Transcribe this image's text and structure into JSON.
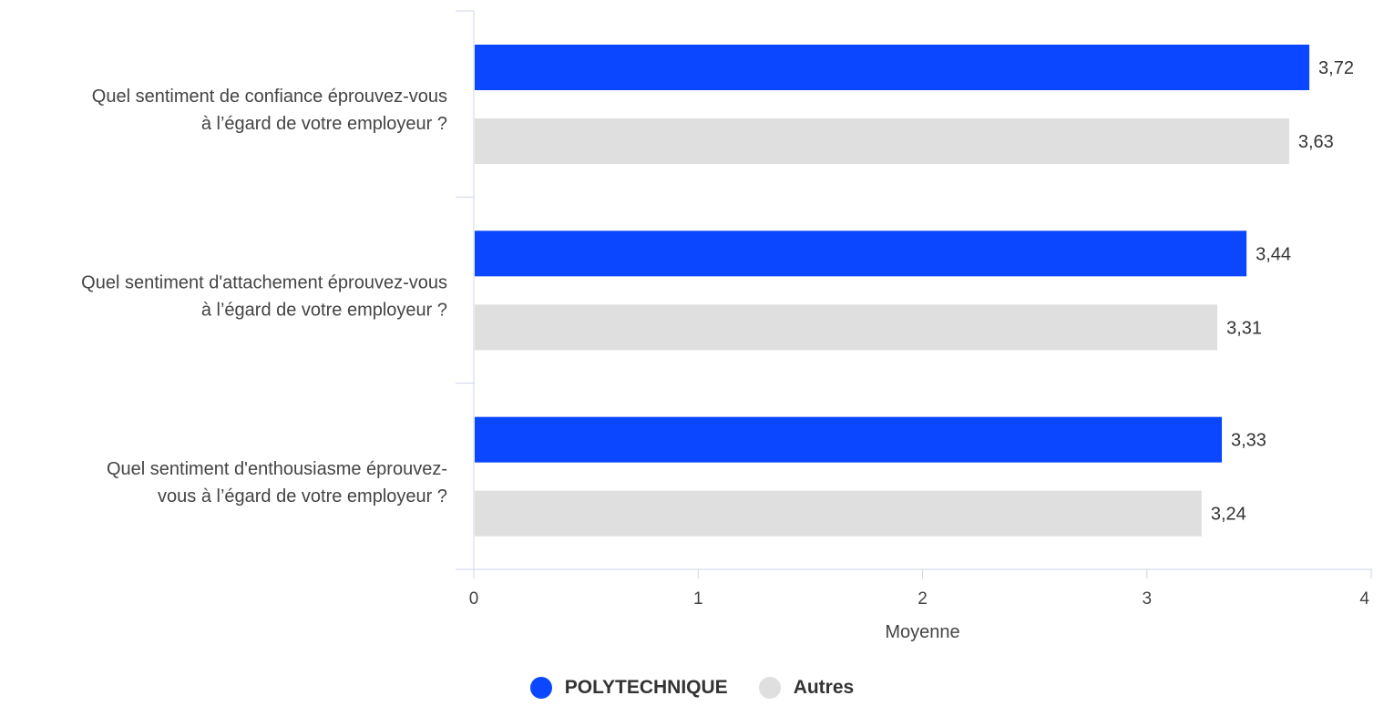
{
  "chart_data": {
    "type": "bar",
    "orientation": "horizontal",
    "categories": [
      [
        "Quel sentiment de confiance éprouvez-vous",
        "à l’égard de votre employeur ?"
      ],
      [
        "Quel sentiment d'attachement éprouvez-vous",
        "à l’égard de votre employeur ?"
      ],
      [
        "Quel sentiment d'enthousiasme éprouvez-",
        "vous à l’égard de votre employeur ?"
      ]
    ],
    "series": [
      {
        "name": "POLYTECHNIQUE",
        "color": "#0a47ff",
        "values": [
          3.72,
          3.44,
          3.33
        ],
        "labels": [
          "3,72",
          "3,44",
          "3,33"
        ]
      },
      {
        "name": "Autres",
        "color": "#dfdfdf",
        "values": [
          3.63,
          3.31,
          3.24
        ],
        "labels": [
          "3,63",
          "3,31",
          "3,24"
        ]
      }
    ],
    "xlabel": "Moyenne",
    "xlim": [
      0,
      4
    ],
    "xticks": [
      "0",
      "1",
      "2",
      "3",
      "4"
    ],
    "grid": false,
    "legend_position": "bottom-center"
  }
}
